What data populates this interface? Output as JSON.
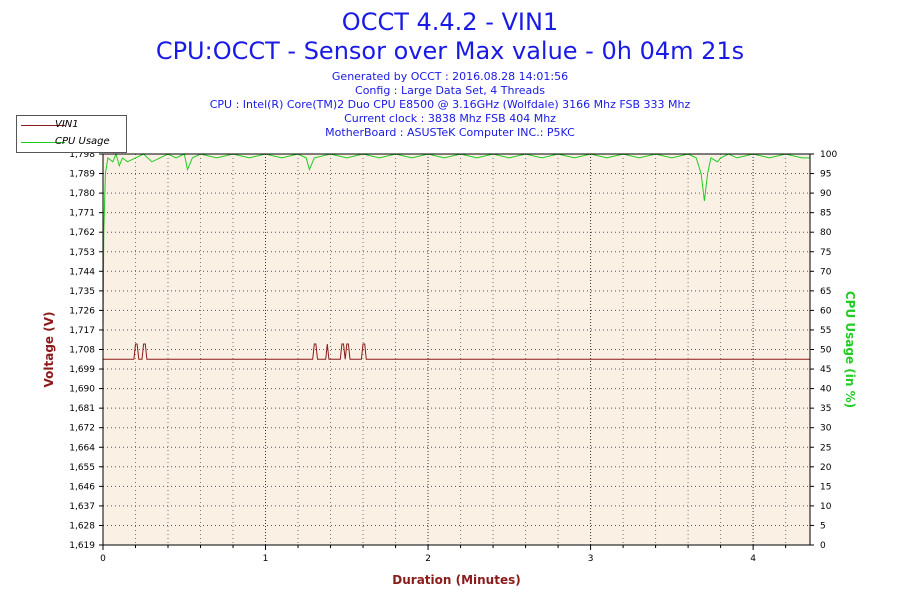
{
  "header": {
    "title": "OCCT 4.4.2 - VIN1",
    "subtitle": "CPU:OCCT - Sensor over Max value - 0h 04m 21s",
    "generated": "Generated by OCCT : 2016.08.28 14:01:56",
    "config": "Config : Large Data Set, 4 Threads",
    "cpu": "CPU : Intel(R) Core(TM)2 Duo CPU E8500 @ 3.16GHz (Wolfdale) 3166 Mhz FSB 333 Mhz",
    "clock": "Current clock : 3838 Mhz FSB 404 Mhz",
    "motherboard": "MotherBoard : ASUSTeK Computer INC.: P5KC"
  },
  "colors": {
    "voltage": "#8b1a1a",
    "cpu_usage": "#22cc22",
    "plot_bg": "#faf0e4",
    "title": "#1a1ae6"
  },
  "chart_data": {
    "type": "line",
    "xlabel": "Duration (Minutes)",
    "ylabel_left": "Voltage (V)",
    "ylabel_right": "CPU Usage (in %)",
    "xlim": [
      0,
      4.35
    ],
    "x_ticks": [
      0,
      1,
      2,
      3,
      4
    ],
    "ylim_left": [
      1.619,
      1.798
    ],
    "y_ticks_left": [
      "1,619",
      "1,628",
      "1,637",
      "1,646",
      "1,655",
      "1,664",
      "1,672",
      "1,681",
      "1,690",
      "1,699",
      "1,708",
      "1,717",
      "1,726",
      "1,735",
      "1,744",
      "1,753",
      "1,762",
      "1,771",
      "1,780",
      "1,789",
      "1,798"
    ],
    "ylim_right": [
      0,
      100
    ],
    "y_ticks_right": [
      0,
      5,
      10,
      15,
      20,
      25,
      30,
      35,
      40,
      45,
      50,
      55,
      60,
      65,
      70,
      75,
      80,
      85,
      90,
      95,
      100
    ],
    "grid": true,
    "legend_position": "top-left",
    "series": [
      {
        "name": "VIN1",
        "axis": "left",
        "x": [
          0,
          0.19,
          0.2,
          0.21,
          0.22,
          0.24,
          0.25,
          0.26,
          0.27,
          1.29,
          1.3,
          1.31,
          1.32,
          1.37,
          1.38,
          1.39,
          1.46,
          1.47,
          1.48,
          1.49,
          1.5,
          1.51,
          1.52,
          1.59,
          1.6,
          1.61,
          1.62,
          4.35
        ],
        "values": [
          1.704,
          1.704,
          1.711,
          1.711,
          1.704,
          1.704,
          1.711,
          1.711,
          1.704,
          1.704,
          1.711,
          1.711,
          1.704,
          1.704,
          1.711,
          1.704,
          1.704,
          1.711,
          1.711,
          1.704,
          1.711,
          1.711,
          1.704,
          1.704,
          1.711,
          1.711,
          1.704,
          1.704
        ]
      },
      {
        "name": "CPU Usage",
        "axis": "right",
        "x": [
          0,
          0.005,
          0.015,
          0.03,
          0.06,
          0.08,
          0.1,
          0.12,
          0.15,
          0.2,
          0.25,
          0.3,
          0.35,
          0.4,
          0.45,
          0.5,
          0.52,
          0.55,
          0.6,
          0.7,
          0.8,
          0.9,
          1.0,
          1.1,
          1.2,
          1.25,
          1.27,
          1.3,
          1.4,
          1.5,
          1.6,
          1.7,
          1.8,
          1.9,
          2.0,
          2.1,
          2.2,
          2.3,
          2.4,
          2.5,
          2.6,
          2.7,
          2.8,
          2.9,
          3.0,
          3.1,
          3.2,
          3.3,
          3.4,
          3.5,
          3.6,
          3.65,
          3.68,
          3.7,
          3.72,
          3.74,
          3.78,
          3.8,
          3.85,
          3.9,
          4.0,
          4.1,
          4.2,
          4.3,
          4.35
        ],
        "values": [
          55,
          80,
          95,
          99,
          98,
          100,
          97,
          99,
          98,
          99,
          100,
          98,
          99,
          100,
          99,
          100,
          96,
          99,
          100,
          99,
          100,
          99,
          100,
          99,
          100,
          99,
          96,
          99,
          100,
          99,
          100,
          99,
          100,
          99,
          100,
          99,
          100,
          99,
          100,
          99,
          100,
          99,
          100,
          99,
          100,
          99,
          100,
          99,
          100,
          99,
          100,
          99,
          95,
          88,
          95,
          99,
          98,
          99,
          100,
          99,
          100,
          99,
          100,
          99,
          99
        ]
      }
    ]
  }
}
